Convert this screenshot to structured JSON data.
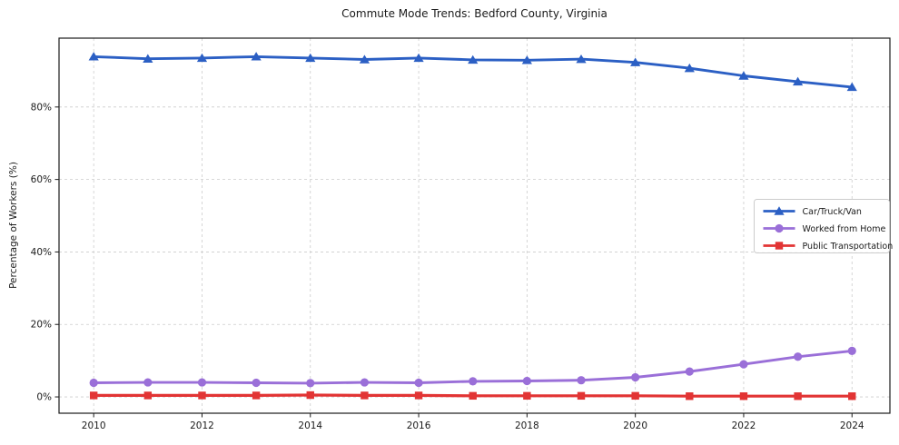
{
  "figure": {
    "title": "Commute Mode Trends: Bedford County, Virginia",
    "background_color": "#ffffff"
  },
  "chart_data": {
    "type": "line",
    "title": "Commute Mode Trends: Bedford County, Virginia",
    "xlabel": "",
    "ylabel": "Percentage of Workers (%)",
    "x": [
      2010,
      2011,
      2012,
      2013,
      2014,
      2015,
      2016,
      2017,
      2018,
      2019,
      2020,
      2021,
      2022,
      2023,
      2024
    ],
    "series": [
      {
        "name": "Car/Truck/Van",
        "color": "#2b5fc4",
        "marker": "triangle",
        "values": [
          93.9,
          93.3,
          93.5,
          93.9,
          93.5,
          93.1,
          93.5,
          93.0,
          92.9,
          93.2,
          92.3,
          90.7,
          88.6,
          87.0,
          85.5
        ]
      },
      {
        "name": "Worked from Home",
        "color": "#9a6fd8",
        "marker": "circle",
        "values": [
          3.9,
          4.0,
          4.0,
          3.9,
          3.8,
          4.0,
          3.9,
          4.3,
          4.4,
          4.6,
          5.4,
          7.0,
          9.0,
          11.1,
          12.7
        ]
      },
      {
        "name": "Public Transportation",
        "color": "#e23434",
        "marker": "square",
        "values": [
          0.4,
          0.4,
          0.4,
          0.4,
          0.5,
          0.4,
          0.4,
          0.3,
          0.3,
          0.3,
          0.3,
          0.2,
          0.2,
          0.2,
          0.2
        ]
      }
    ],
    "xticks": [
      2010,
      2012,
      2014,
      2016,
      2018,
      2020,
      2022,
      2024
    ],
    "xtick_labels": [
      "2010",
      "2012",
      "2014",
      "2016",
      "2018",
      "2020",
      "2022",
      "2024"
    ],
    "yticks": [
      0,
      20,
      40,
      60,
      80
    ],
    "ytick_labels": [
      "0%",
      "20%",
      "40%",
      "60%",
      "80%"
    ],
    "xlim": [
      2009.36,
      2024.7
    ],
    "ylim": [
      -4.5,
      99.0
    ],
    "grid": {
      "on": true,
      "style": "dashed",
      "color": "#cccccc"
    },
    "legend": {
      "position": "center-right",
      "border_color": "#cccccc",
      "background": "#ffffff"
    },
    "spine_color": "#1a1a1a"
  }
}
